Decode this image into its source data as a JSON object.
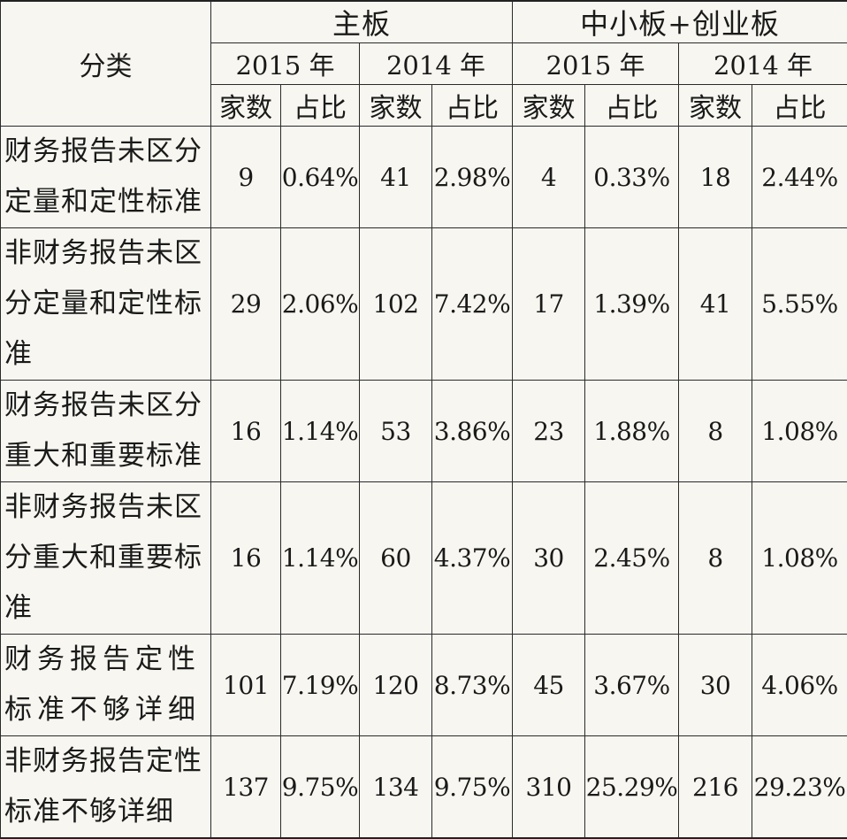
{
  "table": {
    "category_header": "分类",
    "boards": [
      "主板",
      "中小板+创业板"
    ],
    "years": [
      "2015 年",
      "2014 年",
      "2015 年",
      "2014 年"
    ],
    "sub_headers": [
      "家数",
      "占比",
      "家数",
      "占比",
      "家数",
      "占比",
      "家数",
      "占比"
    ],
    "rows": [
      {
        "label": "财务报告未区分定量和定性标准",
        "cells": [
          "9",
          "0.64%",
          "41",
          "2.98%",
          "4",
          "0.33%",
          "18",
          "2.44%"
        ]
      },
      {
        "label": "非财务报告未区分定量和定性标准",
        "cells": [
          "29",
          "2.06%",
          "102",
          "7.42%",
          "17",
          "1.39%",
          "41",
          "5.55%"
        ]
      },
      {
        "label": "财务报告未区分重大和重要标准",
        "cells": [
          "16",
          "1.14%",
          "53",
          "3.86%",
          "23",
          "1.88%",
          "8",
          "1.08%"
        ]
      },
      {
        "label": "非财务报告未区分重大和重要标准",
        "cells": [
          "16",
          "1.14%",
          "60",
          "4.37%",
          "30",
          "2.45%",
          "8",
          "1.08%"
        ]
      },
      {
        "label": "财务报告定性标准不够详细",
        "cells": [
          "101",
          "7.19%",
          "120",
          "8.73%",
          "45",
          "3.67%",
          "30",
          "4.06%"
        ]
      },
      {
        "label": "非财务报告定性标准不够详细",
        "cells": [
          "137",
          "9.75%",
          "134",
          "9.75%",
          "310",
          "25.29%",
          "216",
          "29.23%"
        ]
      }
    ]
  }
}
